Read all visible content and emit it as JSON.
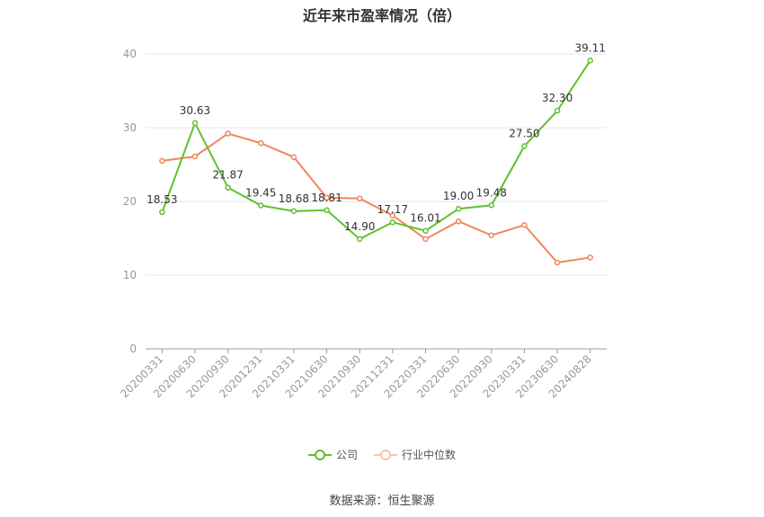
{
  "chart_data": {
    "type": "line",
    "title": "近年来市盈率情况（倍）",
    "categories": [
      "20200331",
      "20200630",
      "20200930",
      "20201231",
      "20210331",
      "20210630",
      "20210930",
      "20211231",
      "20220331",
      "20220630",
      "20220930",
      "20230331",
      "20230630",
      "20240828"
    ],
    "series": [
      {
        "name": "公司",
        "color": "#5ec12f",
        "values": [
          18.53,
          30.63,
          21.87,
          19.45,
          18.68,
          18.81,
          14.9,
          17.17,
          16.01,
          19.0,
          19.48,
          27.5,
          32.3,
          39.11
        ],
        "labels": [
          "18.53",
          "30.63",
          "21.87",
          "19.45",
          "18.68",
          "18.81",
          "14.90",
          "17.17",
          "16.01",
          "19.00",
          "19.48",
          "27.50",
          "32.30",
          "39.11"
        ]
      },
      {
        "name": "行业中位数",
        "color": "#f0875a",
        "values": [
          25.5,
          26.1,
          29.2,
          27.9,
          26.0,
          20.5,
          20.4,
          18.1,
          14.9,
          17.3,
          15.4,
          16.8,
          11.7,
          12.4
        ]
      }
    ],
    "ylim": [
      0,
      40
    ],
    "yticks": [
      "0",
      "10",
      "20",
      "30",
      "40"
    ],
    "grid": true,
    "legend": "bottom-center"
  },
  "footer": {
    "source": "数据来源：恒生聚源"
  }
}
